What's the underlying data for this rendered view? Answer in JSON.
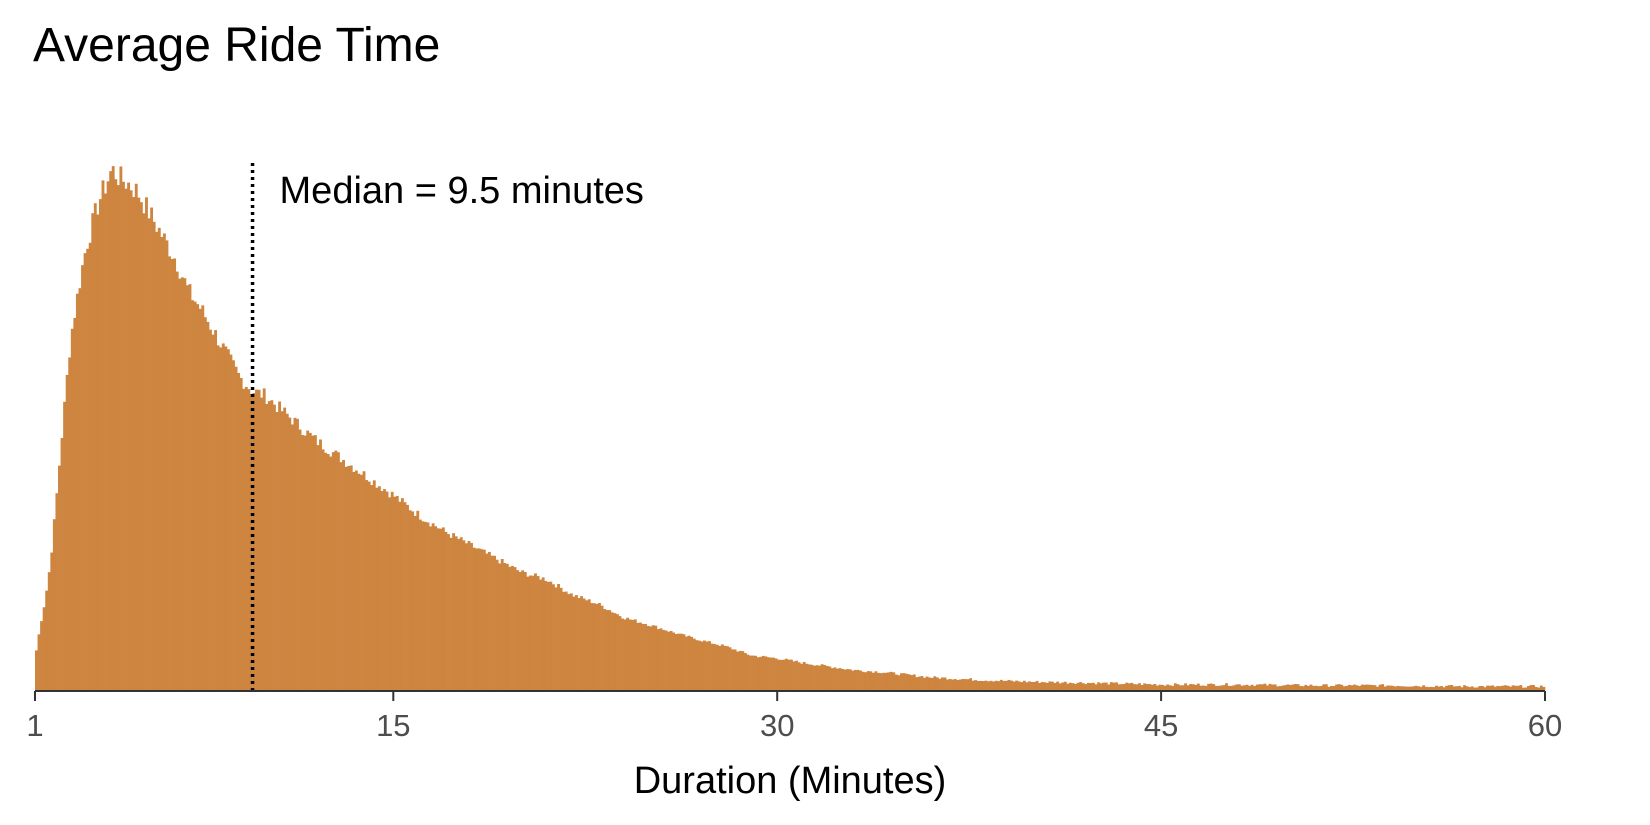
{
  "chart_data": {
    "type": "bar",
    "title": "Average Ride Time",
    "xlabel": "Duration (Minutes)",
    "ylabel": "",
    "xlim": [
      1,
      60
    ],
    "x_ticks": [
      1,
      15,
      30,
      45,
      60
    ],
    "x_tick_labels": [
      "1",
      "15",
      "30",
      "45",
      "60"
    ],
    "y_ticks_shown": false,
    "grid": false,
    "bar_color": "#CD853F",
    "bin_width": 0.1,
    "median": 9.5,
    "median_line_color": "#000000",
    "annotation": "Median = 9.5 minutes",
    "curve_points_x": [
      1.0,
      1.2,
      1.4,
      1.6,
      1.8,
      2.0,
      2.2,
      2.4,
      2.6,
      2.8,
      3.0,
      3.2,
      3.5,
      3.8,
      4.0,
      4.3,
      4.6,
      5.0,
      5.5,
      6.0,
      6.5,
      7.0,
      7.5,
      8.0,
      8.5,
      9.0,
      9.5,
      10.0,
      10.5,
      11.0,
      11.5,
      12.0,
      13.0,
      14.0,
      15.0,
      16.0,
      17.0,
      18.0,
      19.0,
      20.0,
      21.0,
      22.0,
      23.0,
      24.0,
      25.0,
      26.0,
      27.0,
      28.0,
      29.0,
      30.0,
      31.0,
      32.0,
      33.0,
      34.0,
      35.0,
      36.0,
      38.0,
      40.0,
      42.0,
      45.0,
      48.0,
      51.0,
      54.0,
      57.0,
      60.0
    ],
    "curve_points_y": [
      35,
      70,
      100,
      140,
      200,
      265,
      330,
      390,
      425,
      460,
      490,
      510,
      540,
      560,
      575,
      565,
      560,
      550,
      525,
      500,
      475,
      440,
      420,
      395,
      370,
      345,
      330,
      325,
      312,
      300,
      287,
      275,
      255,
      235,
      215,
      193,
      175,
      160,
      145,
      130,
      122,
      105,
      95,
      80,
      72,
      63,
      55,
      48,
      38,
      35,
      30,
      26,
      22,
      20,
      17,
      14,
      11,
      9,
      8,
      6,
      6,
      5,
      5,
      4,
      4
    ]
  }
}
